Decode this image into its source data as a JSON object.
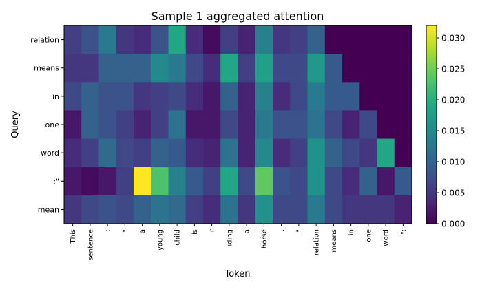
{
  "chart_data": {
    "type": "heatmap",
    "title": "Sample 1 aggregated attention",
    "xlabel": "Token",
    "ylabel": "Query",
    "x_tokens": [
      "This",
      "sentence",
      ":",
      "\"",
      "a",
      "young",
      "child",
      "is",
      "r",
      "iding",
      "a",
      "horse",
      ".",
      "\"",
      "relation",
      "means",
      "in",
      "one",
      "word",
      "\":"
    ],
    "y_tokens": [
      "relation",
      "means",
      "in",
      "one",
      "word",
      ":\"",
      "mean"
    ],
    "values": [
      [
        0.006,
        0.008,
        0.013,
        0.005,
        0.004,
        0.008,
        0.019,
        0.004,
        0.001,
        0.006,
        0.003,
        0.014,
        0.005,
        0.006,
        0.01,
        0.0,
        0.0,
        0.0,
        0.0,
        0.0
      ],
      [
        0.005,
        0.005,
        0.01,
        0.01,
        0.01,
        0.015,
        0.013,
        0.007,
        0.004,
        0.019,
        0.006,
        0.018,
        0.007,
        0.007,
        0.017,
        0.009,
        0.0,
        0.0,
        0.0,
        0.0
      ],
      [
        0.007,
        0.01,
        0.008,
        0.008,
        0.005,
        0.006,
        0.007,
        0.004,
        0.002,
        0.01,
        0.003,
        0.014,
        0.004,
        0.007,
        0.013,
        0.009,
        0.009,
        0.0,
        0.0,
        0.0
      ],
      [
        0.002,
        0.01,
        0.008,
        0.006,
        0.003,
        0.006,
        0.012,
        0.002,
        0.002,
        0.007,
        0.003,
        0.013,
        0.008,
        0.008,
        0.012,
        0.007,
        0.003,
        0.007,
        0.0,
        0.0
      ],
      [
        0.004,
        0.006,
        0.011,
        0.007,
        0.006,
        0.01,
        0.009,
        0.004,
        0.003,
        0.012,
        0.003,
        0.015,
        0.004,
        0.006,
        0.016,
        0.01,
        0.007,
        0.005,
        0.019,
        0.0
      ],
      [
        0.002,
        0.001,
        0.002,
        0.006,
        0.032,
        0.023,
        0.014,
        0.009,
        0.006,
        0.019,
        0.007,
        0.024,
        0.008,
        0.007,
        0.016,
        0.007,
        0.004,
        0.01,
        0.002,
        0.009
      ],
      [
        0.005,
        0.007,
        0.008,
        0.007,
        0.01,
        0.012,
        0.011,
        0.006,
        0.004,
        0.012,
        0.005,
        0.016,
        0.007,
        0.007,
        0.013,
        0.007,
        0.005,
        0.005,
        0.005,
        0.003
      ]
    ],
    "vmin": 0.0,
    "vmax": 0.032,
    "colormap": "viridis",
    "colorbar_ticks": [
      0.0,
      0.005,
      0.01,
      0.015,
      0.02,
      0.025,
      0.03
    ],
    "colorbar_tick_labels": [
      "0.000",
      "0.005",
      "0.010",
      "0.015",
      "0.020",
      "0.025",
      "0.030"
    ],
    "grid": false
  }
}
